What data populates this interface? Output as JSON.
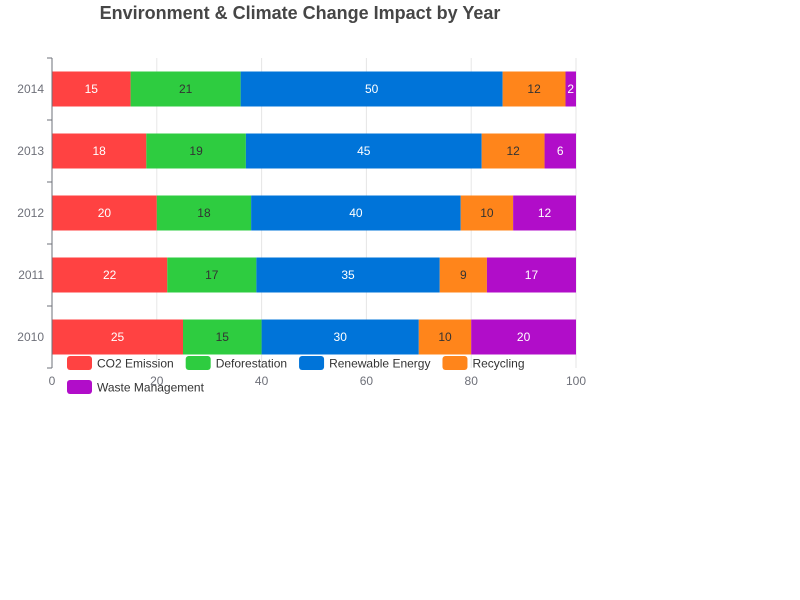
{
  "chart_data": {
    "type": "bar",
    "orientation": "horizontal",
    "stacked": true,
    "title": "Environment & Climate Change Impact by Year",
    "categories": [
      "2010",
      "2011",
      "2012",
      "2013",
      "2014"
    ],
    "series": [
      {
        "name": "CO2 Emission",
        "color": "#ff4242",
        "values": [
          25,
          22,
          20,
          18,
          15
        ]
      },
      {
        "name": "Deforestation",
        "color": "#2ecc40",
        "values": [
          15,
          17,
          18,
          19,
          21
        ]
      },
      {
        "name": "Renewable Energy",
        "color": "#0074d9",
        "values": [
          30,
          35,
          40,
          45,
          50
        ]
      },
      {
        "name": "Recycling",
        "color": "#ff851b",
        "values": [
          10,
          9,
          10,
          12,
          12
        ]
      },
      {
        "name": "Waste Management",
        "color": "#b10dc9",
        "values": [
          20,
          17,
          12,
          6,
          2
        ]
      }
    ],
    "xlim": [
      0,
      100
    ],
    "xticks": [
      0,
      20,
      40,
      60,
      80,
      100
    ],
    "grid": true,
    "legend": "bottom-left"
  },
  "label_colors": {
    "dark": "#333333",
    "light": "#ffffff"
  }
}
